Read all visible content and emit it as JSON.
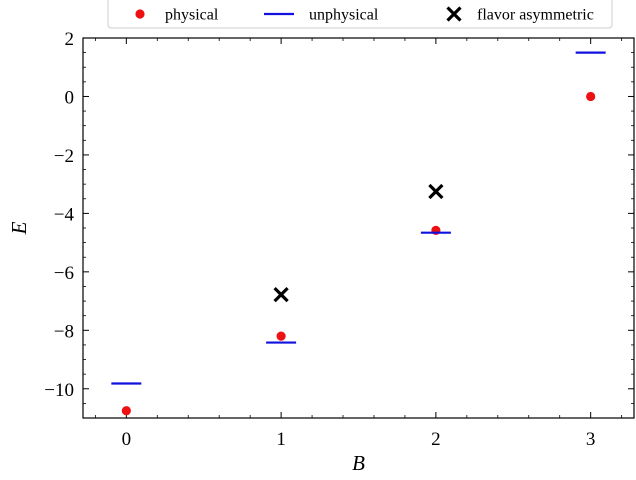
{
  "chart_data": {
    "type": "scatter",
    "xlabel": "B",
    "ylabel": "E",
    "xlim": [
      -0.28,
      3.28
    ],
    "ylim": [
      -11,
      2
    ],
    "xticks": [
      0,
      1,
      2,
      3
    ],
    "xtick_labels": [
      "0",
      "1",
      "2",
      "3"
    ],
    "yticks": [
      2,
      0,
      -2,
      -4,
      -6,
      -8,
      -10
    ],
    "ytick_labels": [
      "2",
      "0",
      "−2",
      "−4",
      "−6",
      "−8",
      "−10"
    ],
    "grid": false,
    "legend_position": "top",
    "series": [
      {
        "name": "physical",
        "marker": "circle",
        "color": "#ee1111",
        "points": [
          [
            0,
            -10.75
          ],
          [
            1,
            -8.2
          ],
          [
            2,
            -4.58
          ],
          [
            3,
            0.0
          ]
        ]
      },
      {
        "name": "unphysical",
        "marker": "hline",
        "color": "#1111dd",
        "points": [
          [
            0,
            -9.82
          ],
          [
            1,
            -8.42
          ],
          [
            2,
            -4.66
          ],
          [
            3,
            1.5
          ]
        ]
      },
      {
        "name": "flavor asymmetric",
        "marker": "x",
        "color": "#000000",
        "points": [
          [
            1,
            -6.78
          ],
          [
            2,
            -3.25
          ]
        ]
      }
    ]
  }
}
